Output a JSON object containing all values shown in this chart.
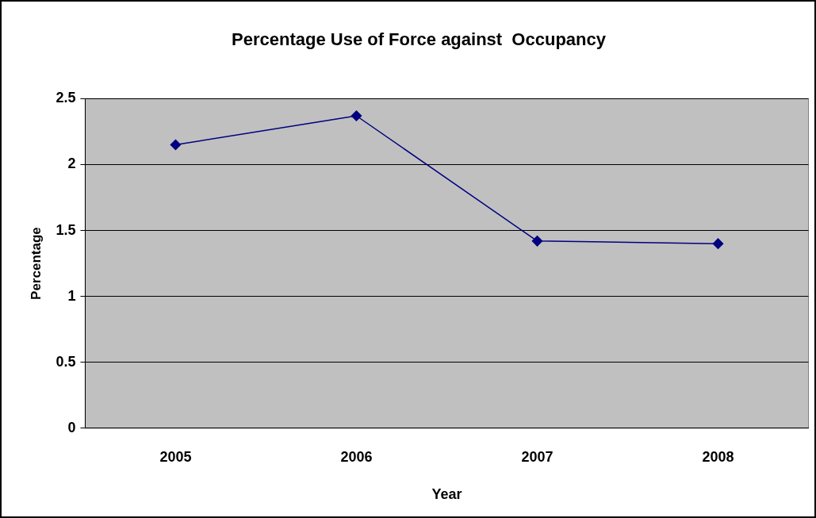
{
  "chart_data": {
    "type": "line",
    "title": "Percentage Use of Force against  Occupancy",
    "xlabel": "Year",
    "ylabel": "Percentage",
    "categories": [
      "2005",
      "2006",
      "2007",
      "2008"
    ],
    "series": [
      {
        "color": "#000080",
        "values": [
          2.15,
          2.37,
          1.42,
          1.4
        ]
      }
    ],
    "ylim": [
      0,
      2.5
    ],
    "yticks": [
      0,
      0.5,
      1,
      1.5,
      2,
      2.5
    ],
    "grid": "y",
    "legend": false,
    "marker": "diamond",
    "line_style": "solid"
  }
}
